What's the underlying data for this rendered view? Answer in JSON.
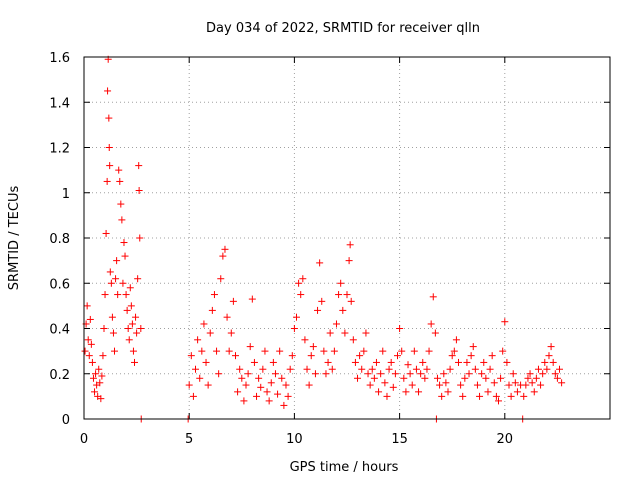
{
  "chart_data": {
    "type": "scatter",
    "title": "Day 034 of 2022, SRMTID for receiver qlln",
    "xlabel": "GPS time / hours",
    "ylabel": "SRMTID / TECUs",
    "xlim": [
      0,
      25
    ],
    "ylim": [
      0,
      1.6
    ],
    "xticks": [
      0,
      5,
      10,
      15,
      20
    ],
    "yticks": [
      0,
      0.2,
      0.4,
      0.6,
      0.8,
      1,
      1.2,
      1.4,
      1.6
    ],
    "xtick_labels": [
      "0",
      "5",
      "10",
      "15",
      "20"
    ],
    "ytick_labels": [
      "0",
      "0.2",
      "0.4",
      "0.6",
      "0.8",
      "1",
      "1.2",
      "1.4",
      "1.6"
    ],
    "grid": true,
    "marker": "plus",
    "color": "#ff0000",
    "series": [
      {
        "name": "SRMTID",
        "points": [
          [
            0.05,
            0.3
          ],
          [
            0.1,
            0.42
          ],
          [
            0.15,
            0.5
          ],
          [
            0.2,
            0.35
          ],
          [
            0.25,
            0.28
          ],
          [
            0.3,
            0.44
          ],
          [
            0.35,
            0.33
          ],
          [
            0.4,
            0.25
          ],
          [
            0.45,
            0.18
          ],
          [
            0.5,
            0.12
          ],
          [
            0.55,
            0.2
          ],
          [
            0.6,
            0.15
          ],
          [
            0.65,
            0.1
          ],
          [
            0.7,
            0.22
          ],
          [
            0.75,
            0.16
          ],
          [
            0.8,
            0.09
          ],
          [
            0.85,
            0.19
          ],
          [
            0.9,
            0.28
          ],
          [
            0.95,
            0.4
          ],
          [
            1.0,
            0.55
          ],
          [
            1.05,
            0.82
          ],
          [
            1.1,
            1.05
          ],
          [
            1.12,
            1.45
          ],
          [
            1.15,
            1.59
          ],
          [
            1.18,
            1.33
          ],
          [
            1.2,
            1.2
          ],
          [
            1.22,
            1.12
          ],
          [
            1.25,
            0.65
          ],
          [
            1.3,
            0.6
          ],
          [
            1.35,
            0.45
          ],
          [
            1.4,
            0.38
          ],
          [
            1.45,
            0.3
          ],
          [
            1.5,
            0.62
          ],
          [
            1.55,
            0.7
          ],
          [
            1.6,
            0.55
          ],
          [
            1.65,
            1.1
          ],
          [
            1.7,
            1.05
          ],
          [
            1.75,
            0.95
          ],
          [
            1.8,
            0.88
          ],
          [
            1.85,
            0.6
          ],
          [
            1.9,
            0.78
          ],
          [
            1.95,
            0.72
          ],
          [
            2.0,
            0.55
          ],
          [
            2.05,
            0.48
          ],
          [
            2.1,
            0.4
          ],
          [
            2.15,
            0.35
          ],
          [
            2.2,
            0.58
          ],
          [
            2.25,
            0.5
          ],
          [
            2.3,
            0.42
          ],
          [
            2.35,
            0.3
          ],
          [
            2.4,
            0.25
          ],
          [
            2.45,
            0.45
          ],
          [
            2.5,
            0.38
          ],
          [
            2.55,
            0.62
          ],
          [
            2.6,
            1.12
          ],
          [
            2.62,
            1.01
          ],
          [
            2.65,
            0.8
          ],
          [
            2.7,
            0.4
          ],
          [
            2.72,
            0.0
          ],
          [
            4.95,
            0.0
          ],
          [
            5.0,
            0.15
          ],
          [
            5.1,
            0.28
          ],
          [
            5.2,
            0.1
          ],
          [
            5.3,
            0.22
          ],
          [
            5.4,
            0.35
          ],
          [
            5.5,
            0.18
          ],
          [
            5.6,
            0.3
          ],
          [
            5.7,
            0.42
          ],
          [
            5.8,
            0.25
          ],
          [
            5.9,
            0.15
          ],
          [
            6.0,
            0.38
          ],
          [
            6.1,
            0.48
          ],
          [
            6.2,
            0.55
          ],
          [
            6.3,
            0.3
          ],
          [
            6.4,
            0.2
          ],
          [
            6.5,
            0.62
          ],
          [
            6.6,
            0.72
          ],
          [
            6.7,
            0.75
          ],
          [
            6.8,
            0.45
          ],
          [
            6.9,
            0.3
          ],
          [
            7.0,
            0.38
          ],
          [
            7.1,
            0.52
          ],
          [
            7.2,
            0.28
          ],
          [
            7.3,
            0.12
          ],
          [
            7.4,
            0.22
          ],
          [
            7.5,
            0.18
          ],
          [
            7.6,
            0.08
          ],
          [
            7.7,
            0.15
          ],
          [
            7.8,
            0.2
          ],
          [
            7.9,
            0.32
          ],
          [
            8.0,
            0.53
          ],
          [
            8.1,
            0.25
          ],
          [
            8.2,
            0.1
          ],
          [
            8.3,
            0.18
          ],
          [
            8.4,
            0.14
          ],
          [
            8.5,
            0.22
          ],
          [
            8.6,
            0.3
          ],
          [
            8.7,
            0.12
          ],
          [
            8.8,
            0.08
          ],
          [
            8.9,
            0.16
          ],
          [
            9.0,
            0.25
          ],
          [
            9.1,
            0.2
          ],
          [
            9.2,
            0.11
          ],
          [
            9.3,
            0.3
          ],
          [
            9.4,
            0.18
          ],
          [
            9.5,
            0.06
          ],
          [
            9.6,
            0.15
          ],
          [
            9.7,
            0.1
          ],
          [
            9.8,
            0.22
          ],
          [
            9.9,
            0.28
          ],
          [
            10.0,
            0.4
          ],
          [
            10.1,
            0.45
          ],
          [
            10.2,
            0.6
          ],
          [
            10.3,
            0.55
          ],
          [
            10.4,
            0.62
          ],
          [
            10.5,
            0.35
          ],
          [
            10.6,
            0.22
          ],
          [
            10.7,
            0.15
          ],
          [
            10.8,
            0.28
          ],
          [
            10.9,
            0.32
          ],
          [
            11.0,
            0.2
          ],
          [
            11.1,
            0.48
          ],
          [
            11.2,
            0.69
          ],
          [
            11.3,
            0.52
          ],
          [
            11.4,
            0.3
          ],
          [
            11.5,
            0.2
          ],
          [
            11.6,
            0.25
          ],
          [
            11.7,
            0.38
          ],
          [
            11.8,
            0.22
          ],
          [
            11.9,
            0.3
          ],
          [
            12.0,
            0.42
          ],
          [
            12.1,
            0.55
          ],
          [
            12.2,
            0.6
          ],
          [
            12.3,
            0.48
          ],
          [
            12.4,
            0.38
          ],
          [
            12.5,
            0.55
          ],
          [
            12.6,
            0.7
          ],
          [
            12.65,
            0.77
          ],
          [
            12.7,
            0.52
          ],
          [
            12.8,
            0.35
          ],
          [
            12.9,
            0.25
          ],
          [
            13.0,
            0.18
          ],
          [
            13.1,
            0.28
          ],
          [
            13.2,
            0.22
          ],
          [
            13.3,
            0.3
          ],
          [
            13.4,
            0.38
          ],
          [
            13.5,
            0.2
          ],
          [
            13.6,
            0.15
          ],
          [
            13.7,
            0.22
          ],
          [
            13.8,
            0.18
          ],
          [
            13.9,
            0.25
          ],
          [
            14.0,
            0.12
          ],
          [
            14.1,
            0.2
          ],
          [
            14.2,
            0.3
          ],
          [
            14.3,
            0.16
          ],
          [
            14.4,
            0.1
          ],
          [
            14.5,
            0.22
          ],
          [
            14.6,
            0.25
          ],
          [
            14.7,
            0.14
          ],
          [
            14.8,
            0.2
          ],
          [
            14.9,
            0.28
          ],
          [
            15.0,
            0.4
          ],
          [
            15.1,
            0.3
          ],
          [
            15.2,
            0.18
          ],
          [
            15.3,
            0.12
          ],
          [
            15.4,
            0.24
          ],
          [
            15.5,
            0.2
          ],
          [
            15.6,
            0.15
          ],
          [
            15.7,
            0.3
          ],
          [
            15.8,
            0.22
          ],
          [
            15.9,
            0.12
          ],
          [
            16.0,
            0.2
          ],
          [
            16.1,
            0.25
          ],
          [
            16.2,
            0.18
          ],
          [
            16.3,
            0.22
          ],
          [
            16.4,
            0.3
          ],
          [
            16.5,
            0.42
          ],
          [
            16.6,
            0.54
          ],
          [
            16.7,
            0.38
          ],
          [
            16.75,
            0.0
          ],
          [
            16.8,
            0.18
          ],
          [
            16.9,
            0.15
          ],
          [
            17.0,
            0.1
          ],
          [
            17.1,
            0.2
          ],
          [
            17.2,
            0.16
          ],
          [
            17.3,
            0.12
          ],
          [
            17.4,
            0.22
          ],
          [
            17.5,
            0.28
          ],
          [
            17.6,
            0.3
          ],
          [
            17.7,
            0.35
          ],
          [
            17.8,
            0.25
          ],
          [
            17.9,
            0.15
          ],
          [
            18.0,
            0.1
          ],
          [
            18.1,
            0.18
          ],
          [
            18.2,
            0.25
          ],
          [
            18.3,
            0.2
          ],
          [
            18.4,
            0.28
          ],
          [
            18.5,
            0.32
          ],
          [
            18.6,
            0.22
          ],
          [
            18.7,
            0.15
          ],
          [
            18.8,
            0.1
          ],
          [
            18.9,
            0.2
          ],
          [
            19.0,
            0.25
          ],
          [
            19.1,
            0.18
          ],
          [
            19.2,
            0.12
          ],
          [
            19.3,
            0.22
          ],
          [
            19.4,
            0.28
          ],
          [
            19.5,
            0.16
          ],
          [
            19.6,
            0.1
          ],
          [
            19.7,
            0.08
          ],
          [
            19.8,
            0.18
          ],
          [
            19.9,
            0.3
          ],
          [
            20.0,
            0.43
          ],
          [
            20.1,
            0.25
          ],
          [
            20.2,
            0.15
          ],
          [
            20.3,
            0.1
          ],
          [
            20.4,
            0.2
          ],
          [
            20.5,
            0.16
          ],
          [
            20.6,
            0.12
          ],
          [
            20.75,
            0.15
          ],
          [
            20.85,
            0.0
          ],
          [
            20.9,
            0.1
          ],
          [
            21.0,
            0.15
          ],
          [
            21.1,
            0.18
          ],
          [
            21.2,
            0.2
          ],
          [
            21.3,
            0.16
          ],
          [
            21.4,
            0.12
          ],
          [
            21.5,
            0.18
          ],
          [
            21.6,
            0.22
          ],
          [
            21.7,
            0.15
          ],
          [
            21.8,
            0.2
          ],
          [
            21.9,
            0.25
          ],
          [
            22.0,
            0.22
          ],
          [
            22.1,
            0.28
          ],
          [
            22.2,
            0.32
          ],
          [
            22.3,
            0.25
          ],
          [
            22.4,
            0.2
          ],
          [
            22.5,
            0.18
          ],
          [
            22.6,
            0.22
          ],
          [
            22.7,
            0.16
          ]
        ]
      }
    ]
  }
}
